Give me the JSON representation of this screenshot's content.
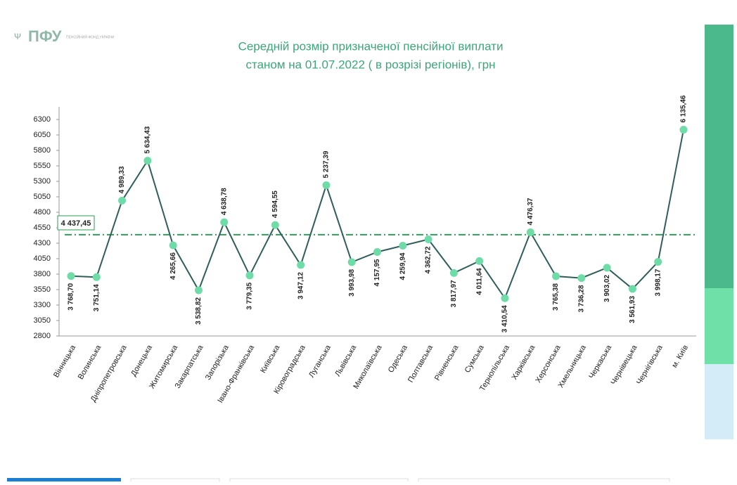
{
  "logo": {
    "abbr": "ПФУ",
    "name": "ПЕНСІЙНИЙ ФОНД УКРАЇНИ"
  },
  "chart_data": {
    "type": "line",
    "title": "Середній розмір призначеної пенсійної виплати",
    "subtitle": "станом на 01.07.2022 ( в розрізі регіонів), грн",
    "categories": [
      "Вінницька",
      "Волинська",
      "Дніпропетровська",
      "Донецька",
      "Житомирська",
      "Закарпатська",
      "Запорізька",
      "Івано-Франківська",
      "Київська",
      "Кіровоградська",
      "Луганська",
      "Львівська",
      "Миколаївська",
      "Одеська",
      "Полтавська",
      "Рівненська",
      "Сумська",
      "Тернопільська",
      "Харківська",
      "Херсонська",
      "Хмельницька",
      "Черкаська",
      "Чернівецька",
      "Чернігівська",
      "м. Київ"
    ],
    "series": [
      {
        "color": "#2f5e5b",
        "marker_color": "#6fdca8",
        "values": [
          3768.7,
          3751.14,
          4989.33,
          5634.43,
          4265.66,
          3538.82,
          4638.78,
          3779.35,
          4594.55,
          3947.12,
          5237.39,
          3993.98,
          4157.95,
          4259.94,
          4362.72,
          3817.97,
          4011.64,
          3410.54,
          4476.37,
          3765.38,
          3736.28,
          3903.02,
          3561.93,
          3998.17,
          6135.46
        ],
        "value_labels": [
          "3 768,70",
          "3 751,14",
          "4 989,33",
          "5 634,43",
          "4 265,66",
          "3 538,82",
          "4 638,78",
          "3 779,35",
          "4 594,55",
          "3 947,12",
          "5 237,39",
          "3 993,98",
          "4 157,95",
          "4 259,94",
          "4 362,72",
          "3 817,97",
          "4 011,64",
          "3 410,54",
          "4 476,37",
          "3 765,38",
          "3 736,28",
          "3 903,02",
          "3 561,93",
          "3 998,17",
          "6 135,46"
        ]
      }
    ],
    "reference_line": {
      "value": 4437.45,
      "label": "4 437,45",
      "color": "#2e9e5a"
    },
    "ylim": [
      2800,
      6300
    ],
    "yticks": [
      2800,
      3050,
      3300,
      3550,
      3800,
      4050,
      4300,
      4550,
      4800,
      5050,
      5300,
      5550,
      5800,
      6050,
      6300
    ]
  }
}
